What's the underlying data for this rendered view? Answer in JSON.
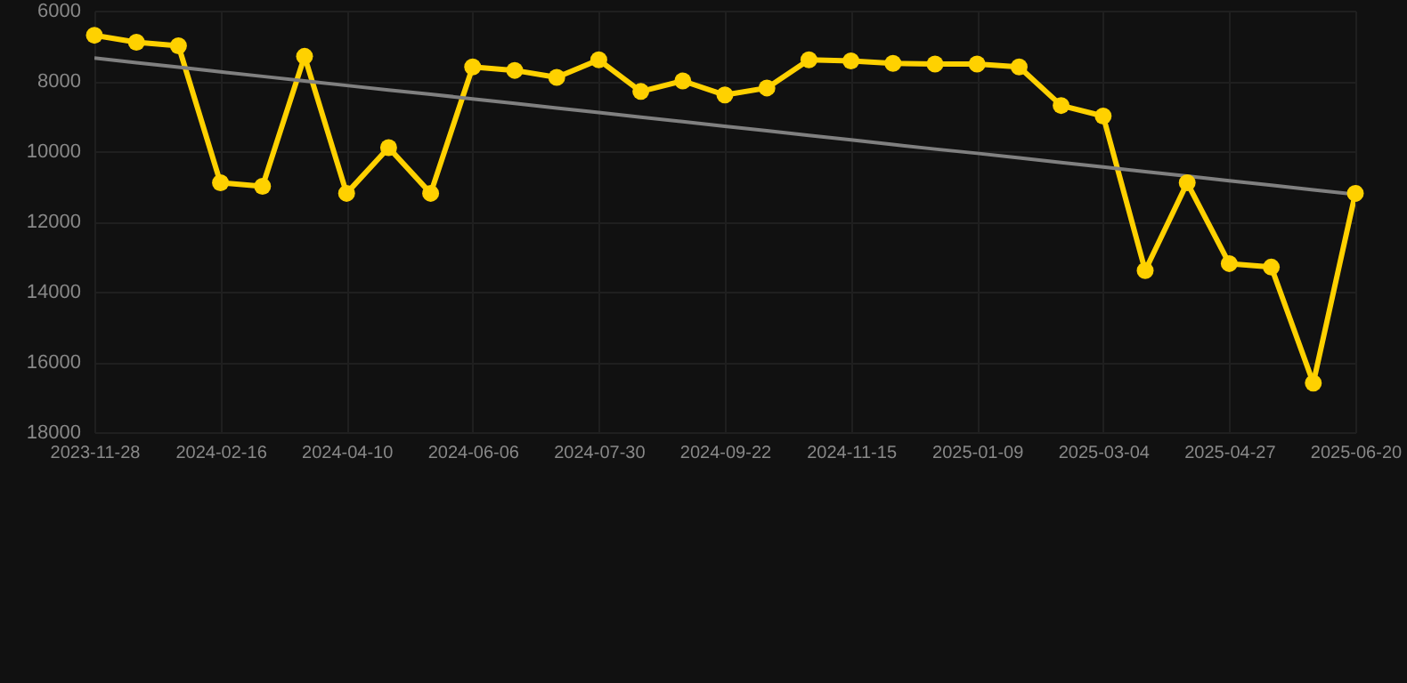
{
  "chart_data": {
    "type": "line",
    "categories": [
      "2023-11-28",
      null,
      null,
      "2024-02-16",
      null,
      null,
      "2024-04-10",
      null,
      null,
      "2024-06-06",
      null,
      null,
      "2024-07-30",
      null,
      null,
      "2024-09-22",
      null,
      null,
      "2024-11-15",
      null,
      null,
      "2025-01-09",
      null,
      null,
      "2025-03-04",
      null,
      null,
      "2025-04-27",
      null,
      null,
      "2025-06-20"
    ],
    "series": [
      {
        "color": "#ffd100",
        "marker": "circle",
        "values": [
          6700,
          6900,
          7000,
          10900,
          11000,
          7300,
          11200,
          9900,
          11200,
          7600,
          7700,
          7900,
          7400,
          8300,
          8000,
          8400,
          8200,
          7400,
          7430,
          7500,
          7520,
          7520,
          7600,
          8700,
          9000,
          13400,
          10900,
          13200,
          13300,
          16600,
          11200
        ]
      },
      {
        "type": "line",
        "color": "#808080",
        "marker": "none",
        "values": [
          7350,
          7480,
          7610,
          7740,
          7870,
          8000,
          8130,
          8260,
          8380,
          8510,
          8640,
          8770,
          8900,
          9030,
          9160,
          9290,
          9420,
          9550,
          9680,
          9810,
          9940,
          10060,
          10190,
          10320,
          10450,
          10580,
          10710,
          10840,
          10970,
          11100,
          11230
        ]
      }
    ],
    "ylim": [
      18000,
      6000
    ],
    "yticks": [
      6000,
      8000,
      10000,
      12000,
      14000,
      16000,
      18000
    ],
    "grid": true
  }
}
